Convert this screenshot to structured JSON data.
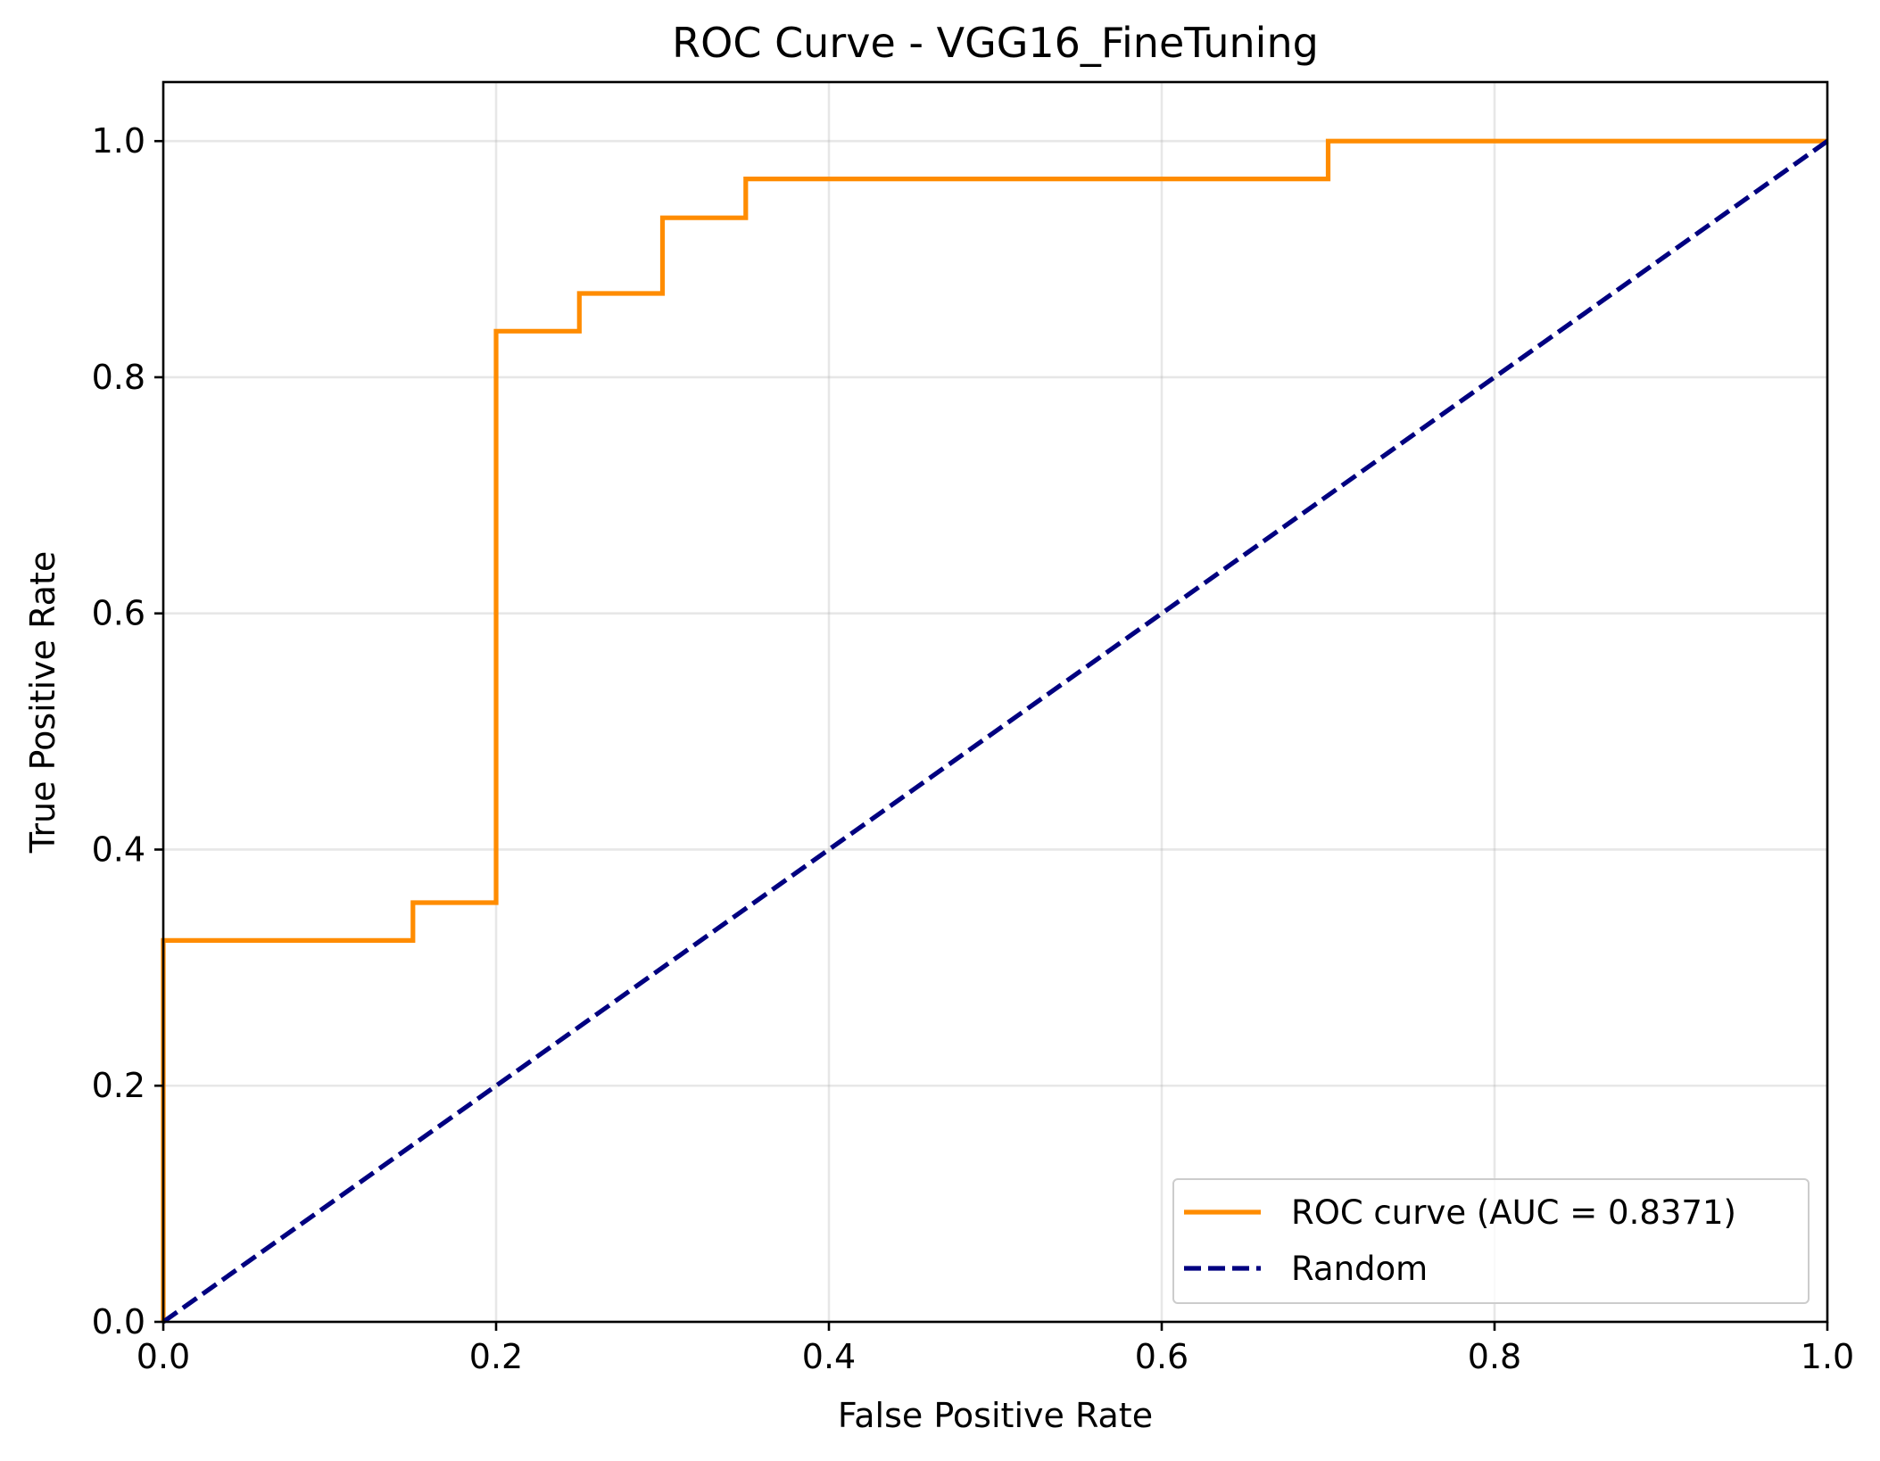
{
  "chart_data": {
    "type": "line",
    "title": "ROC Curve - VGG16_FineTuning",
    "xlabel": "False Positive Rate",
    "ylabel": "True Positive Rate",
    "xlim": [
      0.0,
      1.0
    ],
    "ylim": [
      0.0,
      1.05
    ],
    "grid": true,
    "legend_position": "lower right",
    "xticks": [
      "0.0",
      "0.2",
      "0.4",
      "0.6",
      "0.8",
      "1.0"
    ],
    "yticks": [
      "0.0",
      "0.2",
      "0.4",
      "0.6",
      "0.8",
      "1.0"
    ],
    "series": [
      {
        "name": "ROC curve (AUC = 0.8371)",
        "color": "#ff8c00",
        "style": "solid",
        "x": [
          0.0,
          0.0,
          0.15,
          0.15,
          0.2,
          0.2,
          0.25,
          0.25,
          0.3,
          0.3,
          0.35,
          0.35,
          0.7,
          0.7,
          1.0
        ],
        "y": [
          0.0,
          0.323,
          0.323,
          0.355,
          0.355,
          0.839,
          0.839,
          0.871,
          0.871,
          0.935,
          0.935,
          0.968,
          0.968,
          1.0,
          1.0
        ]
      },
      {
        "name": "Random",
        "color": "#000080",
        "style": "dashed",
        "x": [
          0.0,
          1.0
        ],
        "y": [
          0.0,
          1.0
        ]
      }
    ]
  }
}
